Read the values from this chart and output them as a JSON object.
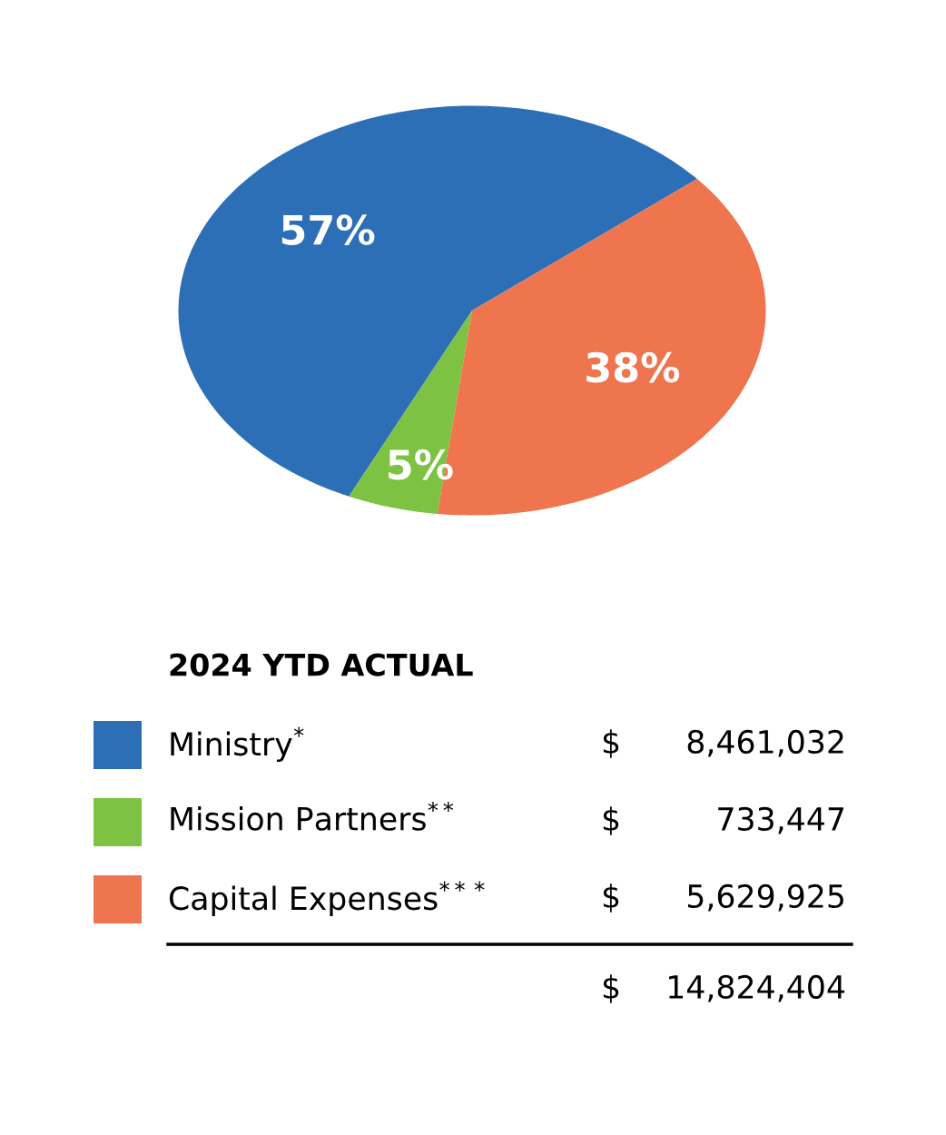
{
  "chart_data": {
    "type": "pie",
    "categories": [
      "Ministry$^{*}$",
      "Mission Partners$^{**}$",
      "Capital Expenses$^{***}$"
    ],
    "values": [
      57,
      5,
      38
    ],
    "value_labels": [
      "57%",
      "5%",
      "38%"
    ],
    "colors": [
      "#2d6fb7",
      "#7dc242",
      "#ee754d"
    ],
    "legend_title": "2024 YTD ACTUAL",
    "legend": "bottom",
    "annotations": [
      "$ 8,461,032",
      "$ 733,447",
      "$ 5,629,925",
      "$ 14,824,404"
    ]
  }
}
